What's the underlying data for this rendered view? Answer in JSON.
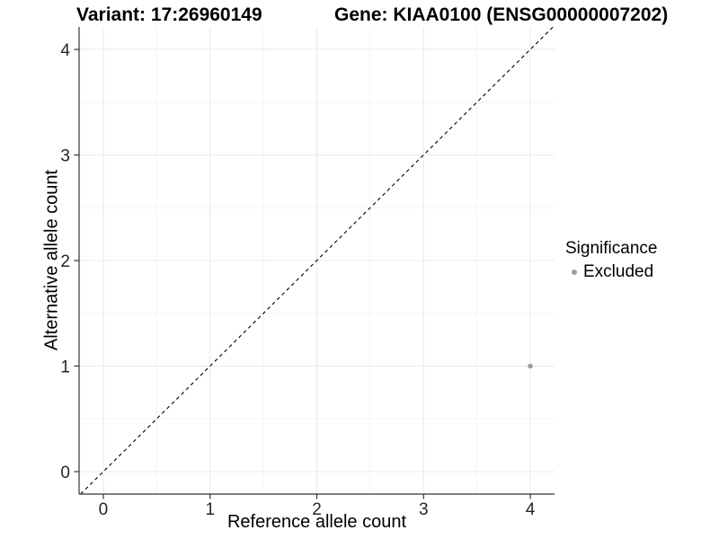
{
  "titles": {
    "left": "Variant: 17:26960149",
    "right": "Gene: KIAA0100 (ENSG00000007202)"
  },
  "chart_data": {
    "type": "scatter",
    "xlabel": "Reference allele count",
    "ylabel": "Alternative allele count",
    "xlim": [
      -0.227,
      4.227
    ],
    "ylim": [
      -0.213,
      4.213
    ],
    "xticks": [
      0,
      1,
      2,
      3,
      4
    ],
    "yticks": [
      0,
      1,
      2,
      3,
      4
    ],
    "minor_xticks": [
      0.5,
      1.5,
      2.5,
      3.5
    ],
    "minor_yticks": [
      0.5,
      1.5,
      2.5,
      3.5
    ],
    "grid": "major and minor, on",
    "identity_line": {
      "style": "dashed",
      "color": "#000000",
      "from": -0.213,
      "to": 4.213
    },
    "series": [
      {
        "name": "Excluded",
        "color": "#9e9e9e",
        "points": [
          {
            "x": 4,
            "y": 1
          }
        ]
      }
    ],
    "legend": {
      "title": "Significance",
      "position": "right",
      "items": [
        {
          "label": "Excluded",
          "color": "#9e9e9e"
        }
      ]
    },
    "colors": {
      "axis": "#333333",
      "grid_major": "#e9e9e9",
      "grid_minor": "#f5f5f5",
      "tick_text": "#262626",
      "background": "#ffffff"
    }
  }
}
